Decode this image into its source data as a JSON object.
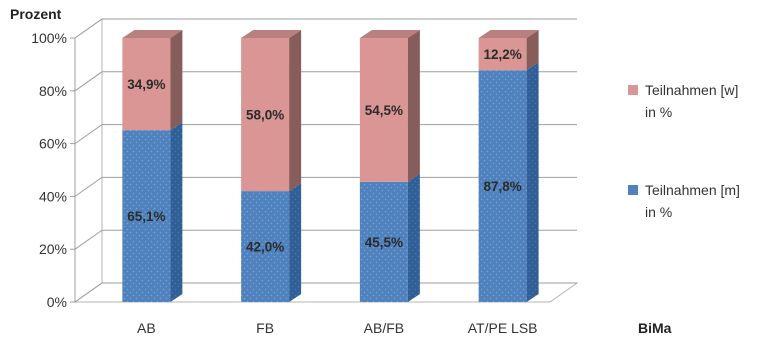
{
  "chart_data": {
    "type": "bar",
    "stacked": true,
    "three_d": true,
    "ylabel": "Prozent",
    "xlabel": "BiMa",
    "ylim": [
      0,
      100
    ],
    "y_ticks": [
      "0%",
      "20%",
      "40%",
      "60%",
      "80%",
      "100%"
    ],
    "categories": [
      "AB",
      "FB",
      "AB/FB",
      "AT/PE LSB"
    ],
    "series": [
      {
        "name": "Teilnahmen [m] in %",
        "legend_lines": [
          "Teilnahmen [m]",
          "in %"
        ],
        "color": "#4f81bd",
        "values": [
          65.1,
          42.0,
          45.5,
          87.8
        ],
        "labels": [
          "65,1%",
          "42,0%",
          "45,5%",
          "87,8%"
        ]
      },
      {
        "name": "Teilnahmen [w] in %",
        "legend_lines": [
          "Teilnahmen [w]",
          "in %"
        ],
        "color": "#d99694",
        "values": [
          34.9,
          58.0,
          54.5,
          12.2
        ],
        "labels": [
          "34,9%",
          "58,0%",
          "54,5%",
          "12,2%"
        ]
      }
    ],
    "legend_position": "right",
    "grid": true
  }
}
